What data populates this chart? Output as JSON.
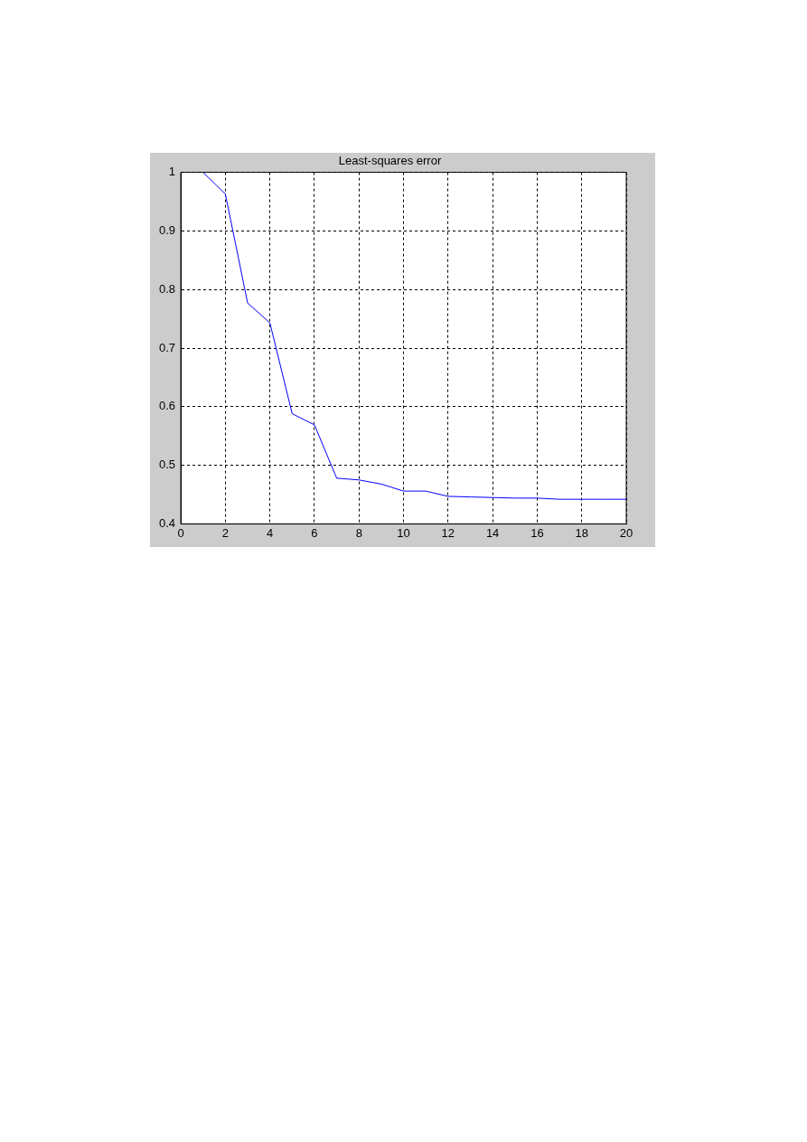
{
  "chart_data": {
    "type": "line",
    "title": "Least-squares error",
    "x": [
      1,
      2,
      3,
      4,
      5,
      6,
      7,
      8,
      9,
      10,
      11,
      12,
      13,
      14,
      15,
      16,
      17,
      18,
      19,
      20
    ],
    "series": [
      {
        "color": "#0000ff",
        "values": [
          1,
          0.963,
          0.777,
          0.743,
          0.588,
          0.569,
          0.478,
          0.475,
          0.468,
          0.456,
          0.456,
          0.447,
          0.446,
          0.445,
          0.444,
          0.444,
          0.442,
          0.442,
          0.442,
          0.442
        ]
      }
    ],
    "xlim": [
      0,
      20
    ],
    "xticks": [
      0,
      2,
      4,
      6,
      8,
      10,
      12,
      14,
      16,
      18,
      20
    ],
    "ylim": [
      0.4,
      1
    ],
    "yticks": [
      0.4,
      0.5,
      0.6,
      0.7,
      0.8,
      0.9,
      1
    ],
    "grid": true,
    "legend": false,
    "marker": "none",
    "line_style": "solid"
  }
}
